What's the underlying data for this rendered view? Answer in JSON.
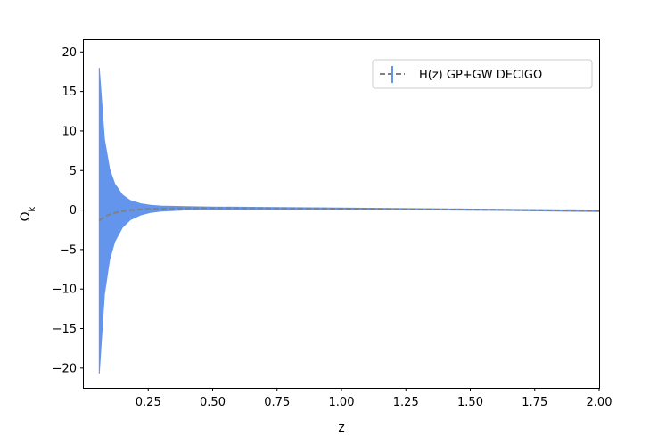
{
  "chart_data": {
    "type": "line",
    "xlabel": "z",
    "ylabel": "Ω",
    "ylabel_subscript": "k",
    "xlim": [
      0.0,
      2.0
    ],
    "ylim": [
      -22.5,
      21.5
    ],
    "xticks": [
      0.25,
      0.5,
      0.75,
      1.0,
      1.25,
      1.5,
      1.75,
      2.0
    ],
    "xtick_labels": [
      "0.25",
      "0.50",
      "0.75",
      "1.00",
      "1.25",
      "1.50",
      "1.75",
      "2.00"
    ],
    "yticks": [
      -20,
      -15,
      -10,
      -5,
      0,
      5,
      10,
      15,
      20
    ],
    "ytick_labels": [
      "−20",
      "−15",
      "−10",
      "−5",
      "0",
      "5",
      "10",
      "15",
      "20"
    ],
    "legend_position": "top-right",
    "grid": false,
    "series": [
      {
        "name": "H(z) GP+GW DECIGO",
        "color": "#808080",
        "band_color": "#6495ED",
        "x": [
          0.06,
          0.08,
          0.1,
          0.12,
          0.15,
          0.18,
          0.22,
          0.26,
          0.3,
          0.4,
          0.5,
          0.7,
          1.0,
          1.3,
          1.6,
          2.0
        ],
        "y": [
          -1.3,
          -0.85,
          -0.55,
          -0.35,
          -0.15,
          -0.02,
          0.08,
          0.15,
          0.18,
          0.22,
          0.23,
          0.22,
          0.18,
          0.1,
          0.03,
          -0.1
        ],
        "upper": [
          18.0,
          9.0,
          5.2,
          3.3,
          1.9,
          1.2,
          0.8,
          0.6,
          0.5,
          0.42,
          0.38,
          0.33,
          0.26,
          0.18,
          0.1,
          0.0
        ],
        "lower": [
          -20.7,
          -10.7,
          -6.3,
          -4.0,
          -2.2,
          -1.24,
          -0.64,
          -0.3,
          -0.14,
          0.02,
          0.08,
          0.11,
          0.1,
          0.02,
          -0.04,
          -0.2
        ]
      }
    ]
  }
}
